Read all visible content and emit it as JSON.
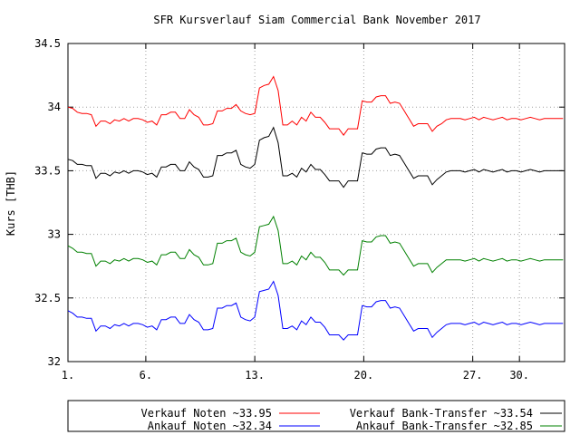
{
  "chart_data": {
    "type": "line",
    "title": "SFR Kursverlauf Siam Commercial Bank November 2017",
    "xlabel": "",
    "ylabel": "Kurs [THB]",
    "xlim": [
      1,
      32.9
    ],
    "ylim": [
      32,
      34.5
    ],
    "grid": true,
    "legend_position": "bottom",
    "xticks": [
      {
        "x": 1,
        "label": "1."
      },
      {
        "x": 6,
        "label": "6."
      },
      {
        "x": 13,
        "label": "13."
      },
      {
        "x": 20,
        "label": "20."
      },
      {
        "x": 27,
        "label": "27."
      },
      {
        "x": 30,
        "label": "30."
      }
    ],
    "yticks": [
      {
        "y": 32,
        "label": "32"
      },
      {
        "y": 32.5,
        "label": "32.5"
      },
      {
        "y": 33,
        "label": "33"
      },
      {
        "y": 33.5,
        "label": "33.5"
      },
      {
        "y": 34,
        "label": "34"
      },
      {
        "y": 34.5,
        "label": "34.5"
      }
    ],
    "x": [
      1.0,
      1.3,
      1.6,
      1.9,
      2.2,
      2.5,
      2.8,
      3.1,
      3.4,
      3.7,
      4.0,
      4.3,
      4.6,
      4.9,
      5.2,
      5.5,
      5.8,
      6.1,
      6.4,
      6.7,
      7.0,
      7.3,
      7.6,
      7.9,
      8.2,
      8.5,
      8.8,
      9.1,
      9.4,
      9.7,
      10.0,
      10.3,
      10.6,
      10.9,
      11.2,
      11.5,
      11.8,
      12.1,
      12.4,
      12.7,
      13.0,
      13.3,
      13.6,
      13.9,
      14.2,
      14.5,
      14.8,
      15.1,
      15.4,
      15.7,
      16.0,
      16.3,
      16.6,
      16.9,
      17.2,
      17.5,
      17.8,
      18.1,
      18.4,
      18.7,
      19.0,
      19.3,
      19.6,
      19.9,
      20.2,
      20.5,
      20.8,
      21.1,
      21.4,
      21.7,
      22.0,
      22.3,
      22.6,
      22.9,
      23.2,
      23.5,
      23.8,
      24.1,
      24.4,
      24.7,
      25.0,
      25.3,
      25.6,
      25.9,
      26.2,
      26.5,
      26.8,
      27.1,
      27.4,
      27.7,
      28.0,
      28.3,
      28.6,
      28.9,
      29.2,
      29.5,
      29.8,
      30.1,
      30.4,
      30.7,
      31.0,
      31.3,
      31.6,
      31.9,
      32.2,
      32.5,
      32.8
    ],
    "series": [
      {
        "name": "Verkauf Noten",
        "legend": "Verkauf Noten ~33.95",
        "color": "#ff0000",
        "values": [
          34.0,
          33.99,
          33.96,
          33.95,
          33.95,
          33.94,
          33.85,
          33.89,
          33.89,
          33.87,
          33.9,
          33.89,
          33.91,
          33.89,
          33.91,
          33.91,
          33.9,
          33.88,
          33.89,
          33.86,
          33.94,
          33.94,
          33.96,
          33.96,
          33.91,
          33.91,
          33.98,
          33.94,
          33.92,
          33.86,
          33.86,
          33.87,
          33.97,
          33.97,
          33.99,
          33.99,
          34.02,
          33.97,
          33.95,
          33.94,
          33.95,
          34.15,
          34.17,
          34.18,
          34.24,
          34.13,
          33.86,
          33.86,
          33.89,
          33.86,
          33.92,
          33.89,
          33.96,
          33.92,
          33.92,
          33.88,
          33.83,
          33.83,
          33.83,
          33.78,
          33.83,
          33.83,
          33.83,
          34.05,
          34.04,
          34.04,
          34.08,
          34.09,
          34.09,
          34.03,
          34.04,
          34.03,
          33.97,
          33.91,
          33.85,
          33.87,
          33.87,
          33.87,
          33.81,
          33.85,
          33.87,
          33.9,
          33.91,
          33.91,
          33.91,
          33.9,
          33.91,
          33.92,
          33.9,
          33.92,
          33.91,
          33.9,
          33.91,
          33.92,
          33.9,
          33.91,
          33.91,
          33.9,
          33.91,
          33.92,
          33.91,
          33.9,
          33.91,
          33.91,
          33.91,
          33.91,
          33.91
        ]
      },
      {
        "name": "Verkauf Bank-Transfer",
        "legend": "Verkauf Bank-Transfer ~33.54",
        "color": "#000000",
        "values": [
          33.59,
          33.58,
          33.55,
          33.55,
          33.54,
          33.54,
          33.44,
          33.48,
          33.48,
          33.46,
          33.49,
          33.48,
          33.5,
          33.48,
          33.5,
          33.5,
          33.49,
          33.47,
          33.48,
          33.45,
          33.53,
          33.53,
          33.55,
          33.55,
          33.5,
          33.5,
          33.57,
          33.53,
          33.51,
          33.45,
          33.45,
          33.46,
          33.62,
          33.62,
          33.64,
          33.64,
          33.66,
          33.55,
          33.53,
          33.52,
          33.55,
          33.74,
          33.76,
          33.77,
          33.84,
          33.72,
          33.46,
          33.46,
          33.48,
          33.45,
          33.52,
          33.49,
          33.55,
          33.51,
          33.51,
          33.47,
          33.42,
          33.42,
          33.42,
          33.37,
          33.42,
          33.42,
          33.42,
          33.64,
          33.63,
          33.63,
          33.67,
          33.68,
          33.68,
          33.62,
          33.63,
          33.62,
          33.56,
          33.5,
          33.44,
          33.46,
          33.46,
          33.46,
          33.39,
          33.43,
          33.46,
          33.49,
          33.5,
          33.5,
          33.5,
          33.49,
          33.5,
          33.51,
          33.49,
          33.51,
          33.5,
          33.49,
          33.5,
          33.51,
          33.49,
          33.5,
          33.5,
          33.49,
          33.5,
          33.51,
          33.5,
          33.49,
          33.5,
          33.5,
          33.5,
          33.5,
          33.5
        ]
      },
      {
        "name": "Ankauf Noten",
        "legend": "Ankauf Noten ~32.34",
        "color": "#0000ff",
        "values": [
          32.4,
          32.38,
          32.35,
          32.35,
          32.34,
          32.34,
          32.24,
          32.28,
          32.28,
          32.26,
          32.29,
          32.28,
          32.3,
          32.28,
          32.3,
          32.3,
          32.29,
          32.27,
          32.28,
          32.25,
          32.33,
          32.33,
          32.35,
          32.35,
          32.3,
          32.3,
          32.37,
          32.33,
          32.31,
          32.25,
          32.25,
          32.26,
          32.42,
          32.42,
          32.44,
          32.44,
          32.46,
          32.35,
          32.33,
          32.32,
          32.35,
          32.55,
          32.56,
          32.57,
          32.63,
          32.52,
          32.26,
          32.26,
          32.28,
          32.25,
          32.32,
          32.29,
          32.35,
          32.31,
          32.31,
          32.27,
          32.21,
          32.21,
          32.21,
          32.17,
          32.21,
          32.21,
          32.21,
          32.44,
          32.43,
          32.43,
          32.47,
          32.48,
          32.48,
          32.42,
          32.43,
          32.42,
          32.36,
          32.3,
          32.24,
          32.26,
          32.26,
          32.26,
          32.19,
          32.23,
          32.26,
          32.29,
          32.3,
          32.3,
          32.3,
          32.29,
          32.3,
          32.31,
          32.29,
          32.31,
          32.3,
          32.29,
          32.3,
          32.31,
          32.29,
          32.3,
          32.3,
          32.29,
          32.3,
          32.31,
          32.3,
          32.29,
          32.3,
          32.3,
          32.3,
          32.3,
          32.3
        ]
      },
      {
        "name": "Ankauf Bank-Transfer",
        "legend": "Ankauf Bank-Transfer ~32.85",
        "color": "#008000",
        "values": [
          32.91,
          32.89,
          32.86,
          32.86,
          32.85,
          32.85,
          32.75,
          32.79,
          32.79,
          32.77,
          32.8,
          32.79,
          32.81,
          32.79,
          32.81,
          32.81,
          32.8,
          32.78,
          32.79,
          32.76,
          32.84,
          32.84,
          32.86,
          32.86,
          32.81,
          32.81,
          32.88,
          32.84,
          32.82,
          32.76,
          32.76,
          32.77,
          32.93,
          32.93,
          32.95,
          32.95,
          32.97,
          32.86,
          32.84,
          32.83,
          32.86,
          33.06,
          33.07,
          33.08,
          33.14,
          33.03,
          32.77,
          32.77,
          32.79,
          32.76,
          32.83,
          32.8,
          32.86,
          32.82,
          32.82,
          32.78,
          32.72,
          32.72,
          32.72,
          32.68,
          32.72,
          32.72,
          32.72,
          32.95,
          32.94,
          32.94,
          32.98,
          32.99,
          32.99,
          32.93,
          32.94,
          32.93,
          32.87,
          32.81,
          32.75,
          32.77,
          32.77,
          32.77,
          32.7,
          32.74,
          32.77,
          32.8,
          32.8,
          32.8,
          32.8,
          32.79,
          32.8,
          32.81,
          32.79,
          32.81,
          32.8,
          32.79,
          32.8,
          32.81,
          32.79,
          32.8,
          32.8,
          32.79,
          32.8,
          32.81,
          32.8,
          32.79,
          32.8,
          32.8,
          32.8,
          32.8,
          32.8
        ]
      }
    ]
  }
}
